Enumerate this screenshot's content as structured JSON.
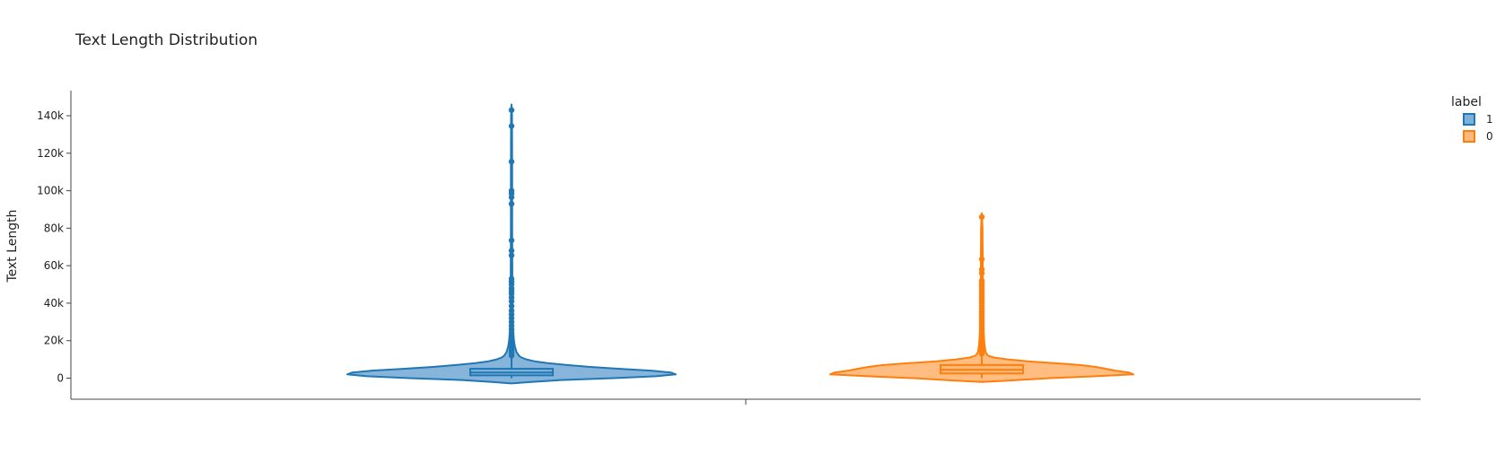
{
  "chart_data": {
    "type": "violin",
    "title": "Text Length Distribution",
    "xlabel": "",
    "ylabel": "Text Length",
    "ylim": [
      -11000,
      150000
    ],
    "y_ticks": [
      0,
      20000,
      40000,
      60000,
      80000,
      100000,
      120000,
      140000
    ],
    "y_tick_labels": [
      "0",
      "20k",
      "40k",
      "60k",
      "80k",
      "100k",
      "120k",
      "140k"
    ],
    "grid": false,
    "legend": {
      "title": "label",
      "position": "top-right"
    },
    "series": [
      {
        "name": "1",
        "color": "#1f77b4",
        "fill": "#7fb0d9",
        "box": {
          "q1": 1500,
          "median": 3000,
          "q3": 5000,
          "whisker_low": 0,
          "whisker_high": 11000
        },
        "range": [
          -2800,
          146000
        ],
        "outliers": [
          143000,
          134500,
          115500,
          100000,
          98500,
          96500,
          93000,
          73500,
          68000,
          65500,
          53000,
          51500,
          50000,
          48000,
          46500,
          45000,
          43000,
          41000,
          38500,
          36000,
          34000,
          32000,
          30000,
          28000,
          26000,
          24000,
          22500,
          21000,
          19500,
          18000,
          16500,
          15000,
          13500,
          12000
        ],
        "density_profile": [
          [
            -2800,
            0.0
          ],
          [
            -2000,
            0.12
          ],
          [
            -1000,
            0.3
          ],
          [
            0,
            0.62
          ],
          [
            1000,
            0.88
          ],
          [
            2000,
            1.0
          ],
          [
            3000,
            0.97
          ],
          [
            4000,
            0.85
          ],
          [
            5000,
            0.66
          ],
          [
            6000,
            0.48
          ],
          [
            7000,
            0.34
          ],
          [
            8000,
            0.22
          ],
          [
            9000,
            0.14
          ],
          [
            10000,
            0.09
          ],
          [
            11000,
            0.06
          ],
          [
            12000,
            0.045
          ],
          [
            14000,
            0.03
          ],
          [
            17000,
            0.02
          ],
          [
            20000,
            0.015
          ],
          [
            25000,
            0.01
          ],
          [
            30000,
            0.008
          ],
          [
            40000,
            0.006
          ],
          [
            55000,
            0.005
          ],
          [
            80000,
            0.004
          ],
          [
            110000,
            0.004
          ],
          [
            140000,
            0.003
          ],
          [
            146000,
            0.0
          ]
        ]
      },
      {
        "name": "0",
        "color": "#ff7f0e",
        "fill": "#ffb97a",
        "box": {
          "q1": 2500,
          "median": 4500,
          "q3": 7000,
          "whisker_low": 0,
          "whisker_high": 12000
        },
        "range": [
          -2000,
          88000
        ],
        "outliers": [
          86000,
          63500,
          58000,
          56000,
          52000,
          50500,
          49000,
          47500,
          46000,
          44500,
          43000,
          41500,
          40000,
          38500,
          37000,
          35500,
          34000,
          32500,
          31000,
          29500,
          28000,
          26500,
          25000,
          23500,
          22000,
          20500,
          19000,
          17500,
          16000,
          14500,
          13000
        ],
        "density_profile": [
          [
            -2000,
            0.0
          ],
          [
            -1200,
            0.2
          ],
          [
            0,
            0.45
          ],
          [
            1000,
            0.75
          ],
          [
            2000,
            1.0
          ],
          [
            3000,
            0.97
          ],
          [
            4000,
            0.88
          ],
          [
            5000,
            0.82
          ],
          [
            6000,
            0.75
          ],
          [
            7000,
            0.65
          ],
          [
            8000,
            0.48
          ],
          [
            9000,
            0.3
          ],
          [
            10000,
            0.17
          ],
          [
            11000,
            0.08
          ],
          [
            12000,
            0.04
          ],
          [
            14000,
            0.025
          ],
          [
            18000,
            0.018
          ],
          [
            25000,
            0.012
          ],
          [
            35000,
            0.009
          ],
          [
            50000,
            0.007
          ],
          [
            65000,
            0.006
          ],
          [
            80000,
            0.005
          ],
          [
            88000,
            0.0
          ]
        ]
      }
    ]
  }
}
